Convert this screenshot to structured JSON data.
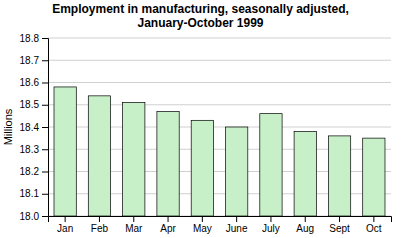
{
  "chart_data": {
    "type": "bar",
    "title": "Employment in manufacturing, seasonally adjusted,\nJanuary-October 1999",
    "categories": [
      "Jan",
      "Feb",
      "Mar",
      "Apr",
      "May",
      "June",
      "July",
      "Aug",
      "Sept",
      "Oct"
    ],
    "values": [
      18.58,
      18.54,
      18.51,
      18.47,
      18.43,
      18.4,
      18.46,
      18.38,
      18.36,
      18.35
    ],
    "color": "#c8f0c8",
    "ylabel": "Millions",
    "ylim": [
      18.0,
      18.8
    ],
    "yticks": [
      {
        "value": 18.0,
        "label": "18.0"
      },
      18.1,
      18.2,
      18.3,
      18.4,
      18.5,
      18.6,
      18.7,
      18.8
    ],
    "grid": true
  }
}
